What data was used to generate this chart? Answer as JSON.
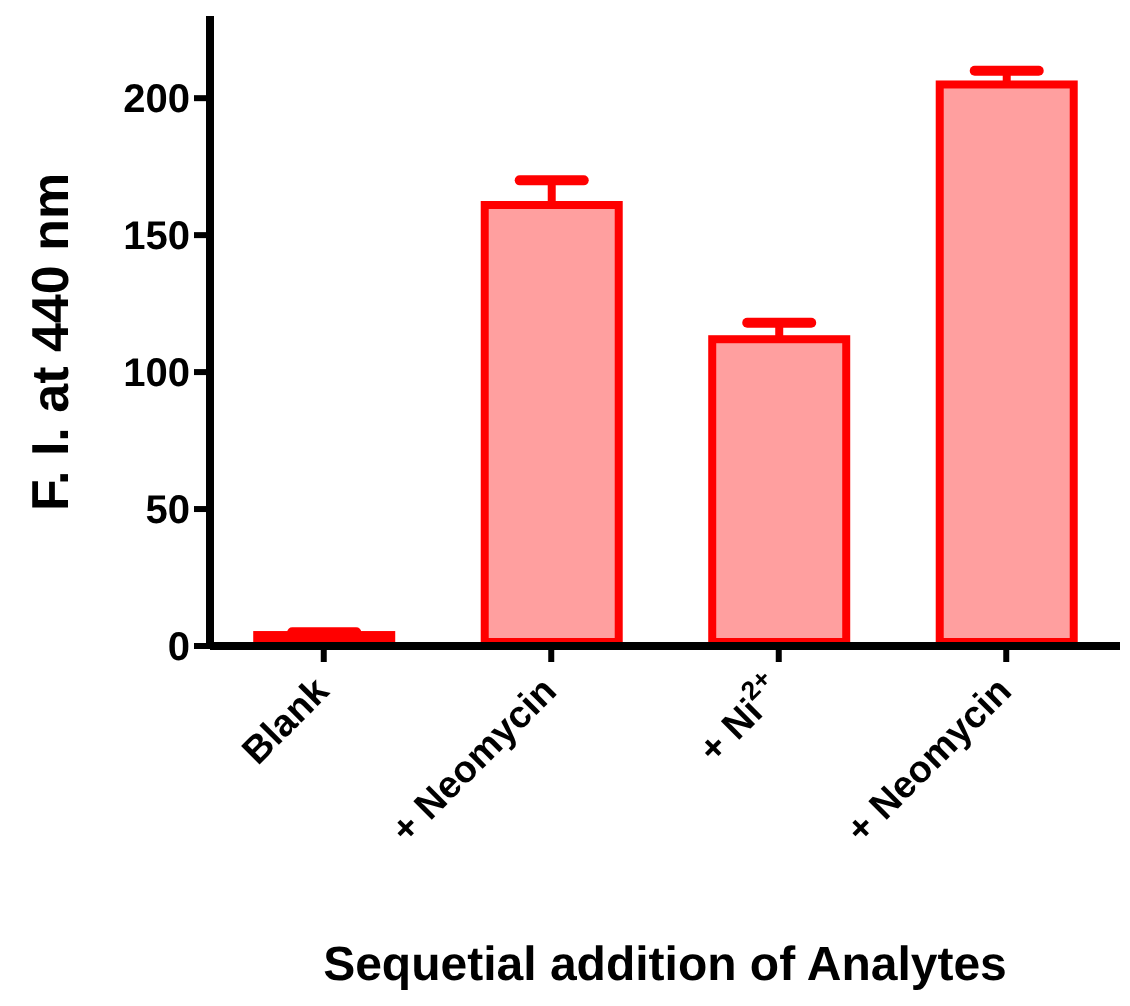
{
  "chart_data": {
    "type": "bar",
    "xlabel": "Sequetial addition of Analytes",
    "ylabel": "F. I. at 440 nm",
    "categories": [
      "Blank",
      "+ Neomycin",
      "+ Ni$^{2+}$",
      "+ Neomycin"
    ],
    "values": [
      4,
      161,
      112,
      205
    ],
    "errors": [
      1,
      9,
      6,
      5
    ],
    "color": "#ff0000",
    "ylim": [
      0,
      230
    ],
    "yticks": [
      0,
      50,
      100,
      150,
      200
    ],
    "grid": false,
    "legend": false
  }
}
